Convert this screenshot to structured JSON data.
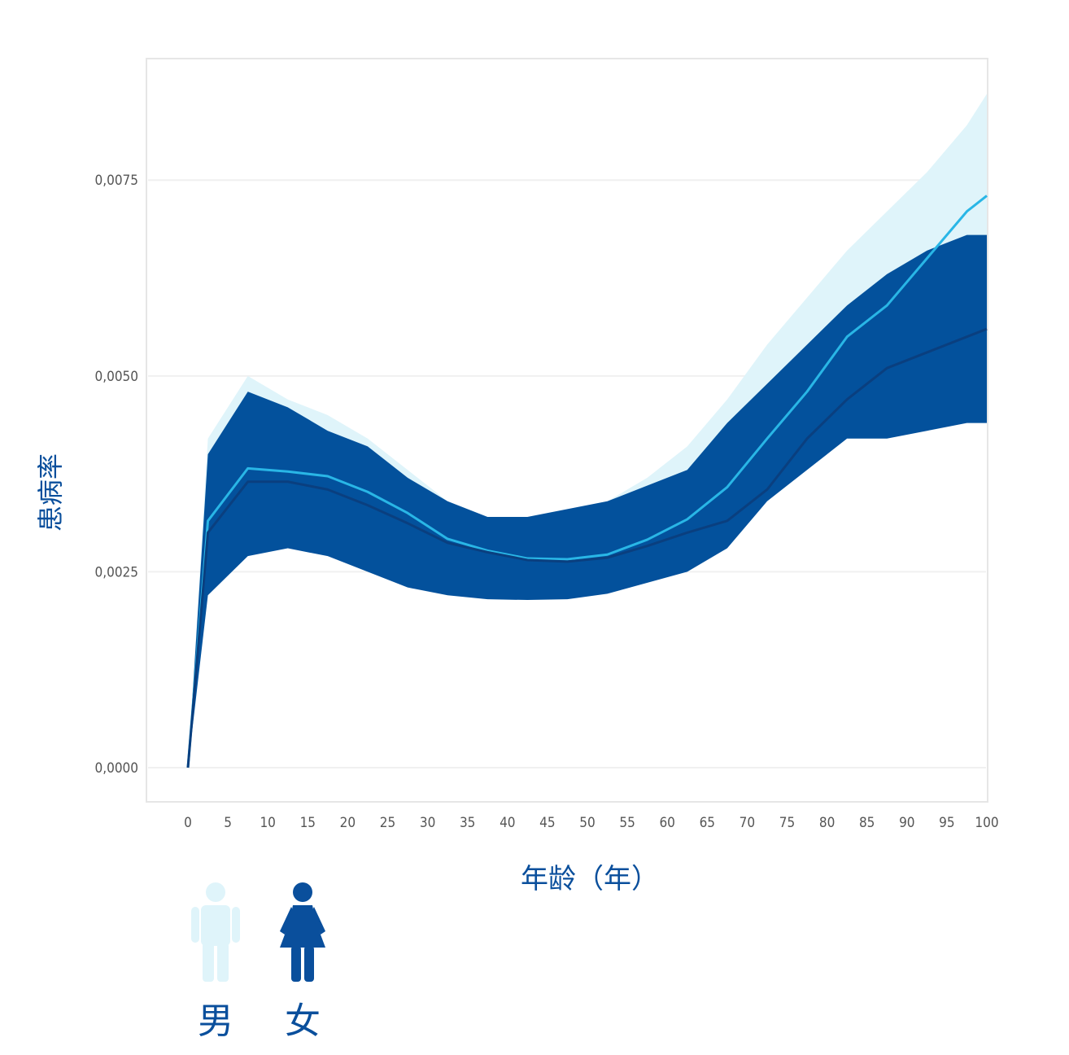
{
  "chart_data": {
    "type": "area",
    "xlabel": "年龄（年）",
    "ylabel": "患病率",
    "xlim": [
      0,
      100
    ],
    "ylim": [
      0,
      0.0085
    ],
    "x_ticks": [
      0,
      5,
      10,
      15,
      20,
      25,
      30,
      35,
      40,
      45,
      50,
      55,
      60,
      65,
      70,
      75,
      80,
      85,
      90,
      95,
      100
    ],
    "y_ticks": [
      0,
      0.0025,
      0.005,
      0.0075
    ],
    "y_tick_labels": [
      "0,0000",
      "0,0025",
      "0,0050",
      "0,0075"
    ],
    "x": [
      0,
      2.5,
      7.5,
      12.5,
      17.5,
      22.5,
      27.5,
      32.5,
      37.5,
      42.5,
      47.5,
      52.5,
      57.5,
      62.5,
      67.5,
      72.5,
      77.5,
      82.5,
      87.5,
      92.5,
      97.5,
      100
    ],
    "grid": "horizontal",
    "legend_position": "bottom-left",
    "series": [
      {
        "name": "男",
        "color": "#29b6e6",
        "band_color": "#dff4fa",
        "values": [
          0,
          0.00315,
          0.00382,
          0.00378,
          0.00372,
          0.00352,
          0.00325,
          0.00292,
          0.00277,
          0.00267,
          0.00266,
          0.00272,
          0.00291,
          0.00317,
          0.00358,
          0.0042,
          0.0048,
          0.0055,
          0.0059,
          0.0065,
          0.0071,
          0.0073
        ],
        "lower": [
          0,
          0.0022,
          0.0029,
          0.0029,
          0.0028,
          0.0026,
          0.0025,
          0.00238,
          0.00228,
          0.00222,
          0.00222,
          0.00228,
          0.0024,
          0.0026,
          0.0029,
          0.0034,
          0.004,
          0.0046,
          0.0049,
          0.0053,
          0.0056,
          0.0057
        ],
        "upper": [
          0,
          0.0042,
          0.005,
          0.0047,
          0.0045,
          0.0042,
          0.0038,
          0.0034,
          0.0032,
          0.0032,
          0.0033,
          0.0034,
          0.0037,
          0.0041,
          0.0047,
          0.0054,
          0.006,
          0.0066,
          0.0071,
          0.0076,
          0.0082,
          0.0086
        ]
      },
      {
        "name": "女",
        "color": "#0a3f7f",
        "band_color": "#03519c",
        "values": [
          0,
          0.003,
          0.00365,
          0.00365,
          0.00355,
          0.00335,
          0.00312,
          0.00287,
          0.00275,
          0.00265,
          0.00263,
          0.00268,
          0.00283,
          0.003,
          0.00315,
          0.00355,
          0.0042,
          0.0047,
          0.0051,
          0.0053,
          0.0055,
          0.0056
        ],
        "lower": [
          0,
          0.0022,
          0.0027,
          0.0028,
          0.0027,
          0.0025,
          0.0023,
          0.0022,
          0.00215,
          0.00214,
          0.00215,
          0.00222,
          0.00236,
          0.0025,
          0.0028,
          0.0034,
          0.0038,
          0.0042,
          0.0042,
          0.0043,
          0.0044,
          0.0044
        ],
        "upper": [
          0,
          0.004,
          0.0048,
          0.0046,
          0.0043,
          0.0041,
          0.0037,
          0.0034,
          0.0032,
          0.0032,
          0.0033,
          0.0034,
          0.0036,
          0.0038,
          0.0044,
          0.0049,
          0.0054,
          0.0059,
          0.0063,
          0.0066,
          0.0068,
          0.0068
        ]
      }
    ]
  }
}
